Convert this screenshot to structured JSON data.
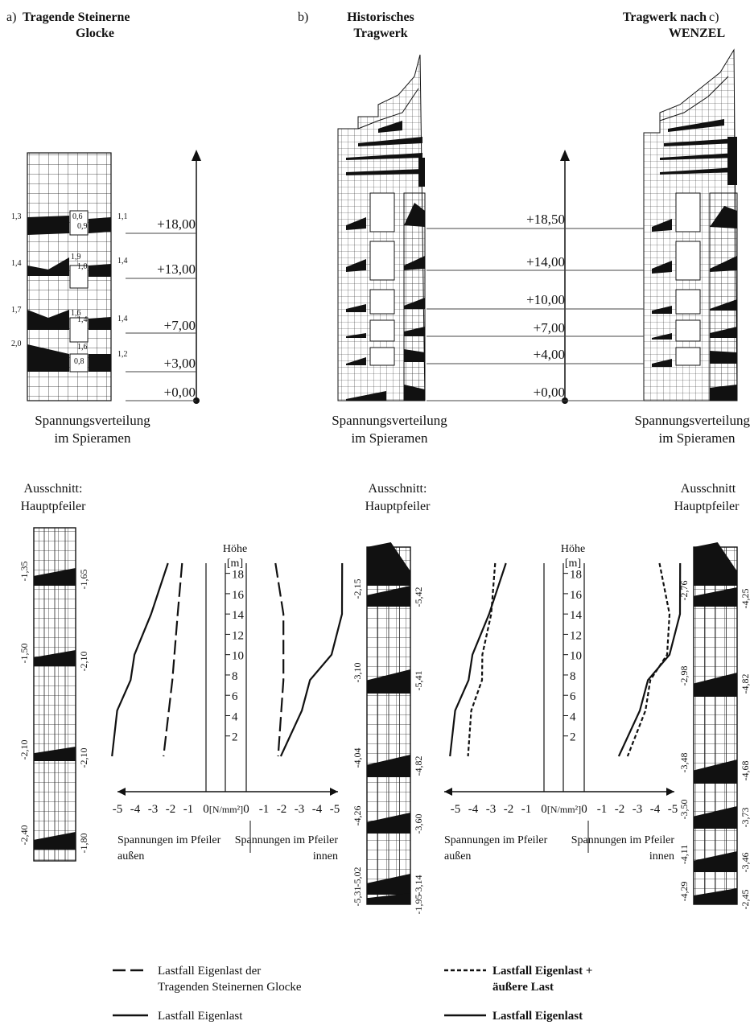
{
  "panels": {
    "a": {
      "letter": "a)",
      "title_line1": "Tragende Steinerne",
      "title_line2": "Glocke"
    },
    "b": {
      "letter": "b)",
      "title_line1": "Historisches",
      "title_line2": "Tragwerk"
    },
    "c": {
      "letter": "c)",
      "title_line1": "Tragwerk nach",
      "title_line2": "WENZEL"
    }
  },
  "distribution_caption": {
    "line1": "Spannungsverteilung",
    "line2": "im Spieramen"
  },
  "excerpt_caption": {
    "line1_a": "Ausschnitt:",
    "line1_c": "Ausschnitt",
    "line2": "Hauptpfeiler"
  },
  "level_scale_a": [
    "+18,00",
    "+13,00",
    "+7,00",
    "+3,00",
    "+0,00"
  ],
  "level_scale_bc": [
    "+18,50",
    "+14,00",
    "+10,00",
    "+7,00",
    "+4,00",
    "+0,00"
  ],
  "frame_a_left_values": [
    "1,3",
    "1,4",
    "1,7",
    "2,0"
  ],
  "frame_a_mid_values": [
    "0,6",
    "0,9",
    "1,9",
    "1,0",
    "1,6",
    "1,4",
    "1,6",
    "0,8"
  ],
  "frame_a_right_values": [
    "1,1",
    "1,4",
    "1,4",
    "1,2"
  ],
  "pier_a": {
    "left_values": [
      "-1,35",
      "-1,50",
      "-2,10",
      "-2,40"
    ],
    "right_values": [
      "-1,65",
      "-2,10",
      "-2,10",
      "-1,80"
    ]
  },
  "pier_b": {
    "left_values": [
      "-2,15",
      "-3,10",
      "-4,04",
      "-4,26",
      "-5,02",
      "-5,31"
    ],
    "right_values": [
      "-5,42",
      "-5,41",
      "-4,82",
      "-3,60",
      "-3,14",
      "-1,95"
    ]
  },
  "pier_c": {
    "left_values": [
      "-2,76",
      "-2,98",
      "-3,48",
      "-3,50",
      "-4,11",
      "-4,29"
    ],
    "right_values": [
      "-4,25",
      "-4,82",
      "-4,68",
      "-3,73",
      "-3,46",
      "-2,45"
    ]
  },
  "chart_axis": {
    "height_label": "Höhe",
    "height_unit": "[m]",
    "height_ticks": [
      "18",
      "16",
      "14",
      "12",
      "10",
      "8",
      "6",
      "4",
      "2"
    ],
    "stress_ticks_left": [
      "-5",
      "-4",
      "-3",
      "-2",
      "-1",
      "0"
    ],
    "stress_unit": "[N/mm²]",
    "stress_ticks_right": [
      "0",
      "-1",
      "-2",
      "-3",
      "-4",
      "-5"
    ]
  },
  "side_labels": {
    "outside_line1": "Spannungen im Pfeiler",
    "outside_line2": "außen",
    "inside_line1": "Spannungen im Pfeiler",
    "inside_line2": "innen"
  },
  "legend_left": {
    "dashed_line1": "Lastfall Eigenlast der",
    "dashed_line2": "Tragenden Steinernen Glocke",
    "solid": "Lastfall Eigenlast"
  },
  "legend_right": {
    "dashed_line1": "Lastfall Eigenlast +",
    "dashed_line2": "äußere Last",
    "solid": "Lastfall Eigenlast"
  },
  "chart_data": [
    {
      "type": "line",
      "x_label": "[N/mm²]",
      "y_label": "Höhe [m]",
      "ylim": [
        0,
        19
      ],
      "xlim_outside": [
        0,
        -5.5
      ],
      "xlim_inside": [
        0,
        -5.5
      ],
      "series": [
        {
          "name": "Lastfall Eigenlast der Tragenden Steinernen Glocke",
          "side": "outside",
          "style": "longdash",
          "points": [
            [
              -1.35,
              19
            ],
            [
              -1.6,
              14
            ],
            [
              -1.9,
              7.5
            ],
            [
              -2.1,
              4.5
            ],
            [
              -2.4,
              0
            ]
          ]
        },
        {
          "name": "Lastfall Eigenlast",
          "side": "outside",
          "style": "solid",
          "points": [
            [
              -2.15,
              19
            ],
            [
              -3.1,
              14
            ],
            [
              -4.04,
              10
            ],
            [
              -4.26,
              7.5
            ],
            [
              -5.02,
              4.5
            ],
            [
              -5.31,
              0
            ]
          ]
        },
        {
          "name": "Lastfall Eigenlast der Tragenden Steinernen Glocke",
          "side": "inside",
          "style": "longdash",
          "points": [
            [
              -1.65,
              19
            ],
            [
              -2.1,
              14
            ],
            [
              -2.1,
              7.5
            ],
            [
              -1.8,
              0
            ]
          ]
        },
        {
          "name": "Lastfall Eigenlast",
          "side": "inside",
          "style": "solid",
          "points": [
            [
              -5.42,
              19
            ],
            [
              -5.41,
              14
            ],
            [
              -4.82,
              10
            ],
            [
              -3.6,
              7.5
            ],
            [
              -3.14,
              4.5
            ],
            [
              -1.95,
              0
            ]
          ]
        }
      ]
    },
    {
      "type": "line",
      "x_label": "[N/mm²]",
      "y_label": "Höhe [m]",
      "ylim": [
        0,
        19
      ],
      "xlim_outside": [
        0,
        -5.5
      ],
      "xlim_inside": [
        0,
        -5.5
      ],
      "series": [
        {
          "name": "Lastfall Eigenlast + äußere Last",
          "side": "outside",
          "style": "dotted",
          "points": [
            [
              -2.76,
              19
            ],
            [
              -2.98,
              14
            ],
            [
              -3.48,
              10
            ],
            [
              -3.5,
              7.5
            ],
            [
              -4.11,
              4.5
            ],
            [
              -4.29,
              0
            ]
          ]
        },
        {
          "name": "Lastfall Eigenlast",
          "side": "outside",
          "style": "solid",
          "points": [
            [
              -2.15,
              19
            ],
            [
              -3.1,
              14
            ],
            [
              -4.04,
              10
            ],
            [
              -4.26,
              7.5
            ],
            [
              -5.02,
              4.5
            ],
            [
              -5.31,
              0
            ]
          ]
        },
        {
          "name": "Lastfall Eigenlast + äußere Last",
          "side": "inside",
          "style": "dotted",
          "points": [
            [
              -4.25,
              19
            ],
            [
              -4.82,
              14
            ],
            [
              -4.68,
              10
            ],
            [
              -3.73,
              7.5
            ],
            [
              -3.46,
              4.5
            ],
            [
              -2.45,
              0
            ]
          ]
        },
        {
          "name": "Lastfall Eigenlast",
          "side": "inside",
          "style": "solid",
          "points": [
            [
              -5.42,
              19
            ],
            [
              -5.41,
              14
            ],
            [
              -4.82,
              10
            ],
            [
              -3.6,
              7.5
            ],
            [
              -3.14,
              4.5
            ],
            [
              -1.95,
              0
            ]
          ]
        }
      ]
    }
  ]
}
